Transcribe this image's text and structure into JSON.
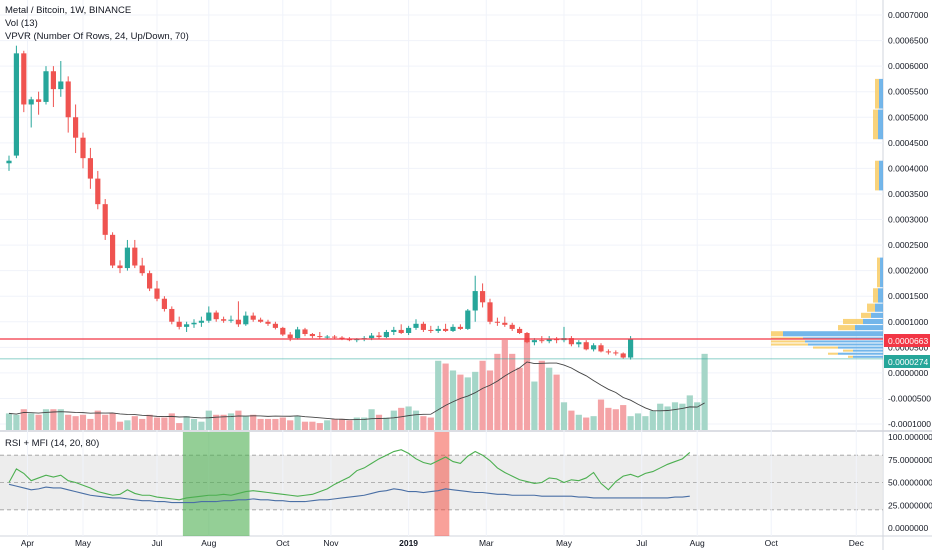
{
  "header": {
    "symbol": "Metal / Bitcoin, 1W, BINANCE",
    "vol_study": "Vol (13)",
    "vpvr_study": "VPVR (Number Of Rows, 24, Up/Down, 70)",
    "osc_study": "RSI + MFI (14, 20, 80)"
  },
  "colors": {
    "up": "#26a69a",
    "down": "#ef5350",
    "vol_up": "#a5d6c8",
    "vol_down": "#f4a3a6",
    "price_line": "#f23645",
    "current_line": "#26a69a",
    "vpvr_up": "#5aa9e6",
    "vpvr_down": "#f7c85a",
    "rsi": "#4caf50",
    "mfi": "#4a6fa5",
    "band": "#e8e8e8",
    "green_zone": "#4caf50",
    "red_zone": "#f44336"
  },
  "price_axis": {
    "ticks": [
      "0.0007000",
      "0.0006500",
      "0.0006000",
      "0.0005500",
      "0.0005000",
      "0.0004500",
      "0.0004000",
      "0.0003500",
      "0.0003000",
      "0.0002500",
      "0.0002000",
      "0.0001500",
      "0.0001000",
      "0.0000500",
      "0.0000000",
      "-0.0000500",
      "-0.0001000"
    ],
    "min": -0.0001,
    "max": 0.0007,
    "last_price_label": "0.0000663",
    "last_price": 6.63e-05,
    "current_label": "0.0000274",
    "current": 2.74e-05
  },
  "osc_axis": {
    "ticks": [
      "100.0000000",
      "75.0000000",
      "50.0000000",
      "25.0000000",
      "0.0000000"
    ],
    "min": 0,
    "max": 100,
    "upper": 80,
    "lower": 20
  },
  "time_axis": {
    "labels": [
      "Apr",
      "May",
      "Jul",
      "Aug",
      "Oct",
      "Nov",
      "2019",
      "Mar",
      "May",
      "Jul",
      "Aug",
      "Oct",
      "Dec"
    ],
    "label_week_index": [
      2.5,
      10,
      20,
      27,
      37,
      43.5,
      54,
      64.5,
      75,
      85.5,
      93,
      103,
      114.5
    ]
  },
  "chart_data": {
    "type": "candlestick",
    "interval": "1W",
    "candles": [
      [
        0.00041,
        0.000425,
        0.000395,
        0.000415
      ],
      [
        0.000425,
        0.00064,
        0.00042,
        0.000625
      ],
      [
        0.000625,
        0.00063,
        0.00051,
        0.000525
      ],
      [
        0.000525,
        0.00054,
        0.00048,
        0.000535
      ],
      [
        0.000535,
        0.00055,
        0.000505,
        0.00053
      ],
      [
        0.00053,
        0.0006,
        0.000525,
        0.00059
      ],
      [
        0.00059,
        0.0006,
        0.00052,
        0.000555
      ],
      [
        0.000555,
        0.00061,
        0.00054,
        0.00057
      ],
      [
        0.00057,
        0.00058,
        0.00047,
        0.0005
      ],
      [
        0.0005,
        0.000525,
        0.00043,
        0.00046
      ],
      [
        0.00046,
        0.00047,
        0.0004,
        0.00042
      ],
      [
        0.00042,
        0.00044,
        0.00036,
        0.00038
      ],
      [
        0.00038,
        0.000395,
        0.00032,
        0.00033
      ],
      [
        0.00033,
        0.00034,
        0.00026,
        0.00027
      ],
      [
        0.00027,
        0.000275,
        0.000205,
        0.00021
      ],
      [
        0.00021,
        0.00022,
        0.000195,
        0.000205
      ],
      [
        0.000205,
        0.00026,
        0.0002,
        0.000245
      ],
      [
        0.000245,
        0.00026,
        0.000205,
        0.00021
      ],
      [
        0.00021,
        0.000225,
        0.00019,
        0.000195
      ],
      [
        0.000195,
        0.0002,
        0.00016,
        0.000165
      ],
      [
        0.000165,
        0.00018,
        0.00014,
        0.000145
      ],
      [
        0.000145,
        0.00015,
        0.00012,
        0.000125
      ],
      [
        0.000125,
        0.00013,
        9.5e-05,
        0.0001
      ],
      [
        0.0001,
        0.00011,
        8.5e-05,
        9e-05
      ],
      [
        9e-05,
        0.0001,
        8e-05,
        9.5e-05
      ],
      [
        9.5e-05,
        0.000105,
        8.8e-05,
        9.8e-05
      ],
      [
        9.8e-05,
        0.00011,
        9e-05,
        0.000102
      ],
      [
        0.000102,
        0.00013,
        9.8e-05,
        0.000118
      ],
      [
        0.000118,
        0.000122,
        0.0001,
        0.000105
      ],
      [
        0.000105,
        0.00011,
        9.8e-05,
        0.000102
      ],
      [
        0.000102,
        0.000112,
        9.8e-05,
        0.000104
      ],
      [
        0.000104,
        0.00014,
        9e-05,
        9.5e-05
      ],
      [
        9.5e-05,
        0.00012,
        9.2e-05,
        0.000112
      ],
      [
        0.000112,
        0.000118,
        0.0001,
        0.000104
      ],
      [
        0.000104,
        0.000108,
        9.8e-05,
        0.0001
      ],
      [
        0.0001,
        0.000104,
        9.2e-05,
        9.6e-05
      ],
      [
        9.6e-05,
        0.0001,
        8.5e-05,
        8.8e-05
      ],
      [
        8.8e-05,
        9e-05,
        7.2e-05,
        7.5e-05
      ],
      [
        7.5e-05,
        8e-05,
        6.2e-05,
        6.8e-05
      ],
      [
        6.8e-05,
        9e-05,
        6.5e-05,
        8.5e-05
      ],
      [
        8.5e-05,
        8.8e-05,
        7.2e-05,
        7.6e-05
      ],
      [
        7.6e-05,
        7.8e-05,
        6.8e-05,
        7.2e-05
      ],
      [
        7.2e-05,
        8e-05,
        6.6e-05,
        7e-05
      ],
      [
        7e-05,
        7.4e-05,
        6.6e-05,
        7.1e-05
      ],
      [
        7.1e-05,
        7.4e-05,
        6.7e-05,
        6.9e-05
      ],
      [
        6.9e-05,
        7.2e-05,
        6.4e-05,
        6.6e-05
      ],
      [
        6.6e-05,
        7e-05,
        6.2e-05,
        6.4e-05
      ],
      [
        6.4e-05,
        6.8e-05,
        6e-05,
        6.6e-05
      ],
      [
        6.6e-05,
        7.2e-05,
        6.2e-05,
        6.8e-05
      ],
      [
        6.8e-05,
        7.8e-05,
        6.4e-05,
        7.3e-05
      ],
      [
        7.3e-05,
        8e-05,
        6.6e-05,
        7e-05
      ],
      [
        7e-05,
        8.4e-05,
        6.8e-05,
        8e-05
      ],
      [
        8e-05,
        9e-05,
        7.4e-05,
        8.4e-05
      ],
      [
        8.4e-05,
        9.5e-05,
        7.6e-05,
        7.8e-05
      ],
      [
        7.8e-05,
        9.2e-05,
        7.4e-05,
        8.8e-05
      ],
      [
        8.8e-05,
        0.000105,
        8.4e-05,
        9.6e-05
      ],
      [
        9.6e-05,
        0.0001,
        8e-05,
        8.4e-05
      ],
      [
        8.4e-05,
        9.2e-05,
        7.8e-05,
        8.2e-05
      ],
      [
        8.2e-05,
        9.2e-05,
        7.8e-05,
        8.6e-05
      ],
      [
        8.6e-05,
        9.6e-05,
        8e-05,
        8.2e-05
      ],
      [
        8.2e-05,
        9.5e-05,
        8e-05,
        9e-05
      ],
      [
        9e-05,
        9.5e-05,
        8.4e-05,
        8.6e-05
      ],
      [
        8.6e-05,
        0.000125,
        8.4e-05,
        0.000122
      ],
      [
        0.000122,
        0.00019,
        0.0001,
        0.00016
      ],
      [
        0.00016,
        0.000175,
        0.000128,
        0.000138
      ],
      [
        0.000138,
        0.000145,
        9.5e-05,
        0.0001
      ],
      [
        0.0001,
        0.000108,
        9.2e-05,
        9.8e-05
      ],
      [
        9.8e-05,
        0.00011,
        9e-05,
        9.4e-05
      ],
      [
        9.4e-05,
        9.8e-05,
        8.2e-05,
        8.6e-05
      ],
      [
        8.6e-05,
        9e-05,
        7.6e-05,
        7.8e-05
      ],
      [
        7.8e-05,
        8e-05,
        5.8e-05,
        6e-05
      ],
      [
        6e-05,
        6.8e-05,
        5.4e-05,
        6.4e-05
      ],
      [
        6.4e-05,
        7.2e-05,
        5.8e-05,
        6.2e-05
      ],
      [
        6.2e-05,
        7.2e-05,
        5.8e-05,
        6.6e-05
      ],
      [
        6.6e-05,
        7e-05,
        5.8e-05,
        6.4e-05
      ],
      [
        6.4e-05,
        9e-05,
        6e-05,
        6.8e-05
      ],
      [
        6.8e-05,
        7.2e-05,
        5.2e-05,
        5.6e-05
      ],
      [
        5.6e-05,
        6.4e-05,
        5e-05,
        6e-05
      ],
      [
        6e-05,
        6.4e-05,
        4.4e-05,
        4.6e-05
      ],
      [
        4.6e-05,
        5.8e-05,
        4.2e-05,
        5.4e-05
      ],
      [
        5.4e-05,
        5.8e-05,
        4e-05,
        4.2e-05
      ],
      [
        4.2e-05,
        4.6e-05,
        3.6e-05,
        4e-05
      ],
      [
        4e-05,
        4.4e-05,
        3.4e-05,
        3.8e-05
      ],
      [
        3.8e-05,
        4e-05,
        2.8e-05,
        3e-05
      ],
      [
        3e-05,
        7.2e-05,
        2.6e-05,
        6.6e-05
      ]
    ],
    "volume": [
      12,
      11,
      15,
      12,
      11,
      15,
      15,
      15,
      11,
      10,
      11,
      8,
      14,
      11,
      12,
      6,
      7,
      10,
      8,
      11,
      9,
      9,
      12,
      5,
      10,
      8,
      6,
      14,
      11,
      11,
      12,
      14,
      10,
      11,
      8,
      8,
      8,
      9,
      7,
      10,
      6,
      6,
      5,
      7,
      8,
      8,
      7,
      9,
      9,
      15,
      11,
      9,
      14,
      16,
      17,
      14,
      10,
      9,
      50,
      48,
      43,
      40,
      38,
      42,
      50,
      43,
      55,
      65,
      55,
      45,
      65,
      35,
      50,
      45,
      40,
      20,
      14,
      11,
      9,
      10,
      22,
      16,
      15,
      18,
      10,
      12,
      10,
      14,
      19,
      17,
      20,
      19,
      25,
      20,
      55
    ],
    "rsi": [
      50,
      65,
      60,
      52,
      55,
      58,
      56,
      58,
      52,
      50,
      47,
      44,
      40,
      38,
      36,
      37,
      42,
      38,
      36,
      36,
      34,
      33,
      32,
      31,
      33,
      34,
      35,
      36,
      36,
      37,
      36,
      38,
      40,
      41,
      40,
      39,
      38,
      37,
      36,
      35,
      36,
      37,
      40,
      43,
      48,
      52,
      56,
      63,
      66,
      71,
      76,
      80,
      84,
      86,
      82,
      76,
      72,
      70,
      74,
      78,
      73,
      71,
      79,
      84,
      80,
      74,
      66,
      61,
      57,
      53,
      51,
      49,
      50,
      55,
      54,
      50,
      53,
      52,
      55,
      61,
      49,
      42,
      51,
      57,
      59,
      56,
      60,
      62,
      66,
      70,
      73,
      76,
      83
    ],
    "mfi": [
      48,
      46,
      44,
      42,
      43,
      45,
      44,
      44,
      42,
      40,
      38,
      36,
      35,
      34,
      33,
      33,
      32,
      31,
      30,
      30,
      29,
      29,
      28,
      28,
      28,
      28,
      29,
      29,
      29,
      30,
      30,
      31,
      31,
      32,
      31,
      31,
      30,
      30,
      29,
      29,
      29,
      30,
      31,
      31,
      32,
      33,
      34,
      35,
      36,
      38,
      40,
      41,
      43,
      42,
      40,
      40,
      39,
      40,
      41,
      43,
      42,
      41,
      40,
      39,
      39,
      38,
      37,
      37,
      36,
      36,
      36,
      36,
      35,
      35,
      35,
      35,
      35,
      34,
      34,
      33,
      33,
      33,
      33,
      33,
      33,
      33,
      33,
      33,
      33,
      33,
      34,
      34,
      35
    ],
    "green_zone_weeks": [
      24,
      32
    ],
    "red_zone_weeks": [
      58,
      59
    ]
  }
}
